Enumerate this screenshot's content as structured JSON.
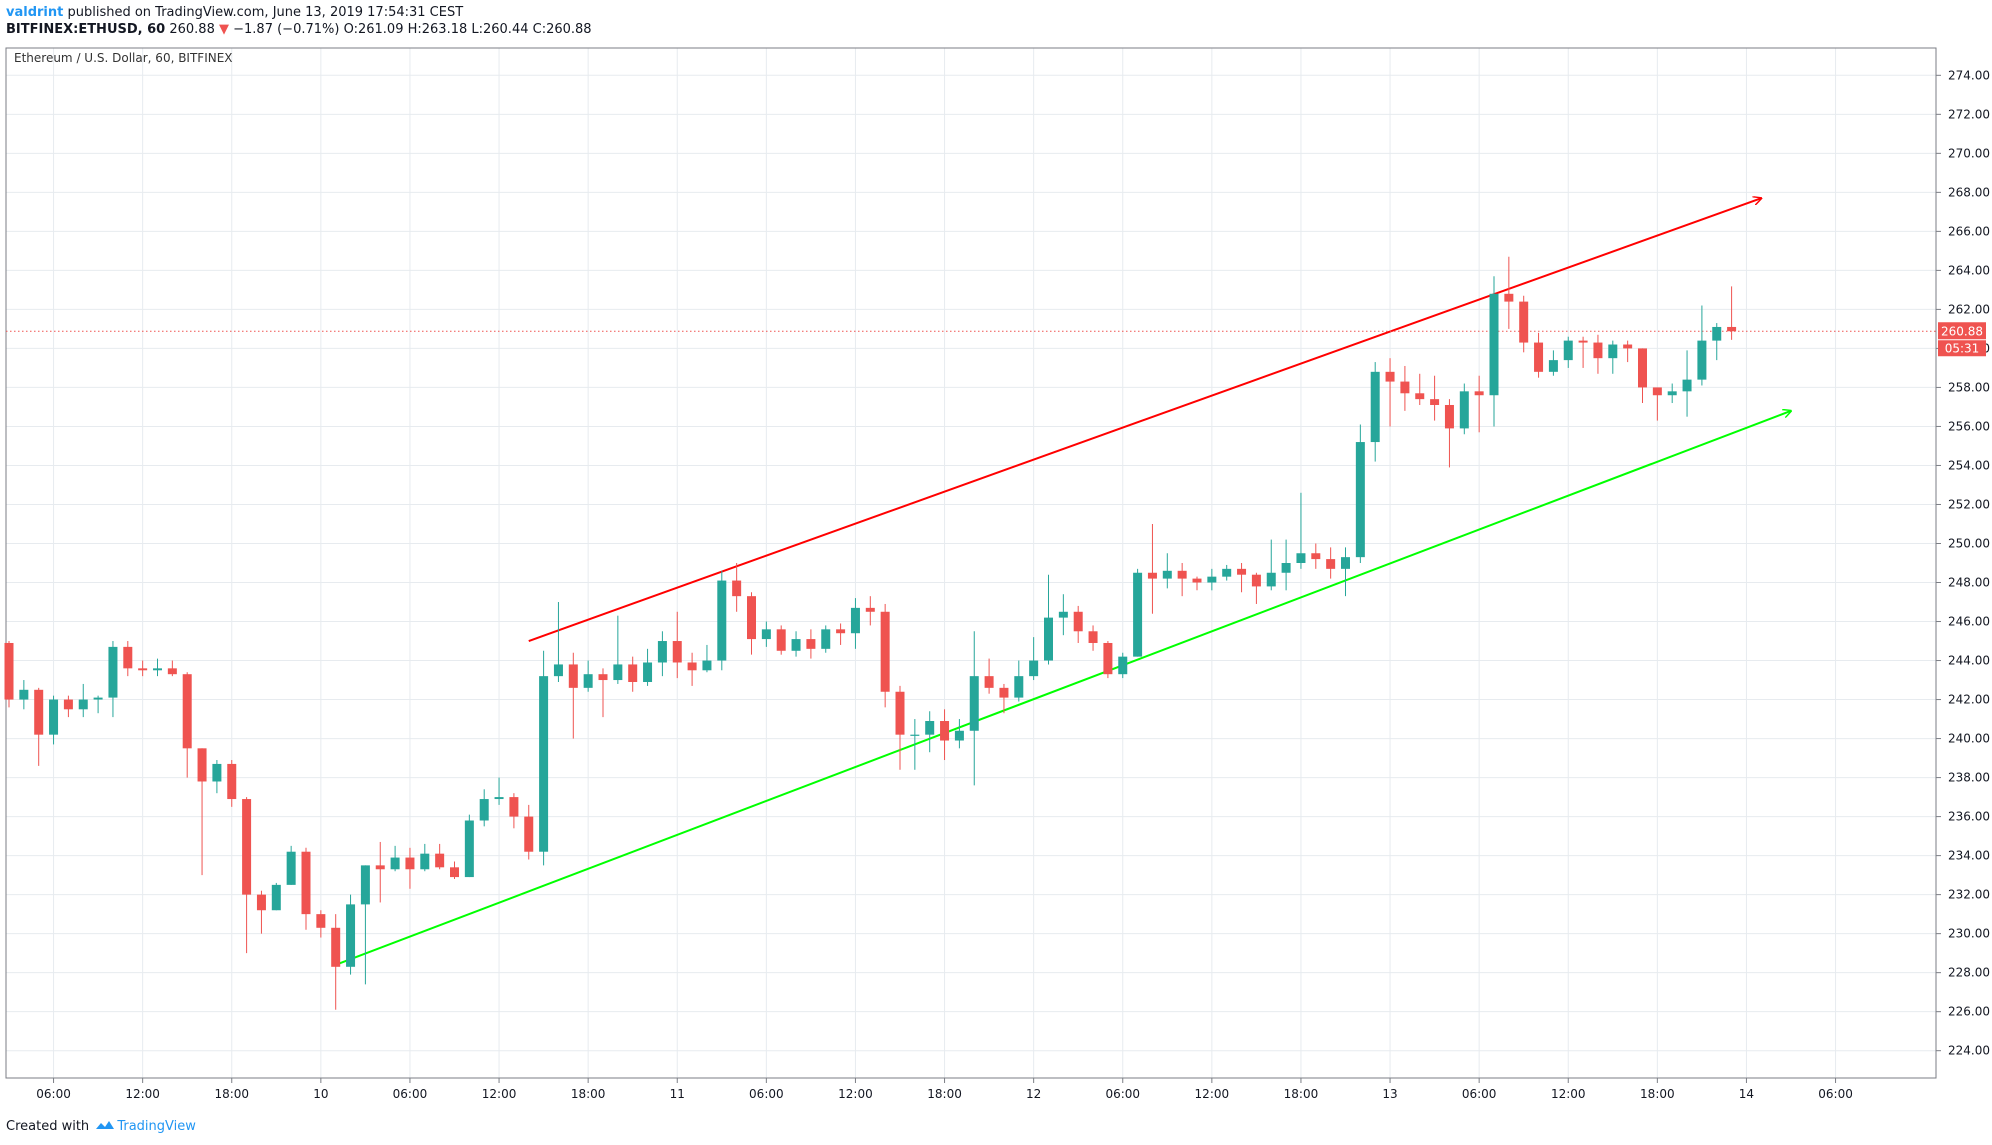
{
  "header": {
    "author": "valdrint",
    "published": " published on TradingView.com, June 13, 2019 17:54:31 CEST",
    "symbol": "BITFINEX:ETHUSD, 60",
    "last": "260.88",
    "arrow": "▼",
    "change": "−1.87 (−0.71%)",
    "ohlc": "O:261.09 H:263.18 L:260.44 C:260.88"
  },
  "footer": {
    "created": "Created with",
    "brand": "TradingView"
  },
  "colors": {
    "up": "#26a69a",
    "down": "#ef5350",
    "upper_trend": "#ff0000",
    "lower_trend": "#00ff00",
    "grid": "#e7ebef"
  },
  "chart_data": {
    "type": "candlestick",
    "title": "Ethereum / U.S. Dollar, 60, BITFINEX",
    "ylim": [
      222.6,
      275.4
    ],
    "y_ticks": [
      "274.00",
      "272.00",
      "270.00",
      "268.00",
      "266.00",
      "264.00",
      "262.00",
      "260.00",
      "258.00",
      "256.00",
      "254.00",
      "252.00",
      "250.00",
      "248.00",
      "246.00",
      "244.00",
      "242.00",
      "240.00",
      "238.00",
      "236.00",
      "234.00",
      "232.00",
      "230.00",
      "228.00",
      "226.00",
      "224.00"
    ],
    "x_ticks": [
      {
        "label": "06:00",
        "i": 3
      },
      {
        "label": "12:00",
        "i": 9
      },
      {
        "label": "18:00",
        "i": 15
      },
      {
        "label": "10",
        "i": 21
      },
      {
        "label": "06:00",
        "i": 27
      },
      {
        "label": "12:00",
        "i": 33
      },
      {
        "label": "18:00",
        "i": 39
      },
      {
        "label": "11",
        "i": 45
      },
      {
        "label": "06:00",
        "i": 51
      },
      {
        "label": "12:00",
        "i": 57
      },
      {
        "label": "18:00",
        "i": 63
      },
      {
        "label": "12",
        "i": 69
      },
      {
        "label": "06:00",
        "i": 75
      },
      {
        "label": "12:00",
        "i": 81
      },
      {
        "label": "18:00",
        "i": 87
      },
      {
        "label": "13",
        "i": 93
      },
      {
        "label": "06:00",
        "i": 99
      },
      {
        "label": "12:00",
        "i": 105
      },
      {
        "label": "18:00",
        "i": 111
      },
      {
        "label": "14",
        "i": 117
      },
      {
        "label": "06:00",
        "i": 123
      }
    ],
    "last_price_label": "260.88",
    "countdown_label": "05:31",
    "candles": [
      [
        244.9,
        242.0,
        245.0,
        241.6
      ],
      [
        242.0,
        242.5,
        243.0,
        241.5
      ],
      [
        242.5,
        240.2,
        242.6,
        238.6
      ],
      [
        240.2,
        242.0,
        242.2,
        239.7
      ],
      [
        242.0,
        241.5,
        242.2,
        241.1
      ],
      [
        241.5,
        242.0,
        242.8,
        241.1
      ],
      [
        242.0,
        242.1,
        242.2,
        241.3
      ],
      [
        242.1,
        244.7,
        245.0,
        241.1
      ],
      [
        244.7,
        243.6,
        245.0,
        243.2
      ],
      [
        243.6,
        243.5,
        244.0,
        243.2
      ],
      [
        243.5,
        243.6,
        244.1,
        243.2
      ],
      [
        243.6,
        243.3,
        244.0,
        243.2
      ],
      [
        243.3,
        239.5,
        243.4,
        238.0
      ],
      [
        239.5,
        237.8,
        239.5,
        233.0
      ],
      [
        237.8,
        238.7,
        238.9,
        237.2
      ],
      [
        238.7,
        236.9,
        238.9,
        236.5
      ],
      [
        236.9,
        232.0,
        237.0,
        229.0
      ],
      [
        232.0,
        231.2,
        232.2,
        230.0
      ],
      [
        231.2,
        232.5,
        232.6,
        231.2
      ],
      [
        232.5,
        234.2,
        234.5,
        232.5
      ],
      [
        234.2,
        231.0,
        234.4,
        230.2
      ],
      [
        231.0,
        230.3,
        231.2,
        229.8
      ],
      [
        230.3,
        228.3,
        231.0,
        226.1
      ],
      [
        228.3,
        231.5,
        232.0,
        227.9
      ],
      [
        231.5,
        233.5,
        233.5,
        227.4
      ],
      [
        233.5,
        233.3,
        234.7,
        231.6
      ],
      [
        233.3,
        233.9,
        234.5,
        233.2
      ],
      [
        233.9,
        233.3,
        234.4,
        232.3
      ],
      [
        233.3,
        234.1,
        234.6,
        233.2
      ],
      [
        234.1,
        233.4,
        234.6,
        233.3
      ],
      [
        233.4,
        232.9,
        233.7,
        232.8
      ],
      [
        232.9,
        235.8,
        236.1,
        232.9
      ],
      [
        235.8,
        236.9,
        237.4,
        235.5
      ],
      [
        236.9,
        237.0,
        238.0,
        236.6
      ],
      [
        237.0,
        236.0,
        237.2,
        235.4
      ],
      [
        236.0,
        234.2,
        236.6,
        233.8
      ],
      [
        234.2,
        243.2,
        244.5,
        233.5
      ],
      [
        243.2,
        243.8,
        247.0,
        242.9
      ],
      [
        243.8,
        242.6,
        244.4,
        240.0
      ],
      [
        242.6,
        243.3,
        244.0,
        242.4
      ],
      [
        243.3,
        243.0,
        243.6,
        241.1
      ],
      [
        243.0,
        243.8,
        246.3,
        242.8
      ],
      [
        243.8,
        242.9,
        244.2,
        242.4
      ],
      [
        242.9,
        243.9,
        244.6,
        242.7
      ],
      [
        243.9,
        245.0,
        245.5,
        243.2
      ],
      [
        245.0,
        243.9,
        246.5,
        243.1
      ],
      [
        243.9,
        243.5,
        244.4,
        242.7
      ],
      [
        243.5,
        244.0,
        244.8,
        243.4
      ],
      [
        244.0,
        248.1,
        248.6,
        243.5
      ],
      [
        248.1,
        247.3,
        249.0,
        246.5
      ],
      [
        247.3,
        245.1,
        247.5,
        244.3
      ],
      [
        245.1,
        245.6,
        246.0,
        244.7
      ],
      [
        245.6,
        244.5,
        245.8,
        244.3
      ],
      [
        244.5,
        245.1,
        245.5,
        244.2
      ],
      [
        245.1,
        244.6,
        245.6,
        244.1
      ],
      [
        244.6,
        245.6,
        245.8,
        244.4
      ],
      [
        245.6,
        245.4,
        245.9,
        244.8
      ],
      [
        245.4,
        246.7,
        247.2,
        244.6
      ],
      [
        246.7,
        246.5,
        247.3,
        245.8
      ],
      [
        246.5,
        242.4,
        246.9,
        241.6
      ],
      [
        242.4,
        240.2,
        242.7,
        238.4
      ],
      [
        240.2,
        240.2,
        241.0,
        238.4
      ],
      [
        240.2,
        240.9,
        241.4,
        239.3
      ],
      [
        240.9,
        239.9,
        241.5,
        238.9
      ],
      [
        239.9,
        240.4,
        241.0,
        239.5
      ],
      [
        240.4,
        243.2,
        245.5,
        237.6
      ],
      [
        243.2,
        242.6,
        244.1,
        242.3
      ],
      [
        242.6,
        242.1,
        242.8,
        241.3
      ],
      [
        242.1,
        243.2,
        244.0,
        241.9
      ],
      [
        243.2,
        244.0,
        245.2,
        243.0
      ],
      [
        244.0,
        246.2,
        248.4,
        243.8
      ],
      [
        246.2,
        246.5,
        247.4,
        245.3
      ],
      [
        246.5,
        245.5,
        246.8,
        244.9
      ],
      [
        245.5,
        244.9,
        245.8,
        244.5
      ],
      [
        244.9,
        243.3,
        245.0,
        243.1
      ],
      [
        243.3,
        244.2,
        244.4,
        243.1
      ],
      [
        244.2,
        248.5,
        248.7,
        244.2
      ],
      [
        248.5,
        248.2,
        251.0,
        246.4
      ],
      [
        248.2,
        248.6,
        249.5,
        247.7
      ],
      [
        248.6,
        248.2,
        249.0,
        247.3
      ],
      [
        248.2,
        248.0,
        248.3,
        247.6
      ],
      [
        248.0,
        248.3,
        248.7,
        247.6
      ],
      [
        248.3,
        248.7,
        248.9,
        248.1
      ],
      [
        248.7,
        248.4,
        249.0,
        247.5
      ],
      [
        248.4,
        247.8,
        248.5,
        246.9
      ],
      [
        247.8,
        248.5,
        250.2,
        247.6
      ],
      [
        248.5,
        249.0,
        250.2,
        247.6
      ],
      [
        249.0,
        249.5,
        252.6,
        248.7
      ],
      [
        249.5,
        249.2,
        250.0,
        248.7
      ],
      [
        249.2,
        248.7,
        249.8,
        248.2
      ],
      [
        248.7,
        249.3,
        249.8,
        247.3
      ],
      [
        249.3,
        255.2,
        256.1,
        249.0
      ],
      [
        255.2,
        258.8,
        259.3,
        254.2
      ],
      [
        258.8,
        258.3,
        259.5,
        256.0
      ],
      [
        258.3,
        257.7,
        259.1,
        256.8
      ],
      [
        257.7,
        257.4,
        258.7,
        257.1
      ],
      [
        257.4,
        257.1,
        258.6,
        256.3
      ],
      [
        257.1,
        255.9,
        257.4,
        253.9
      ],
      [
        255.9,
        257.8,
        258.2,
        255.6
      ],
      [
        257.8,
        257.6,
        258.6,
        255.7
      ],
      [
        257.6,
        262.8,
        263.7,
        256.0
      ],
      [
        262.8,
        262.4,
        264.7,
        261.0
      ],
      [
        262.4,
        260.3,
        262.7,
        259.8
      ],
      [
        260.3,
        258.8,
        260.8,
        258.5
      ],
      [
        258.8,
        259.4,
        259.9,
        258.6
      ],
      [
        259.4,
        260.4,
        260.6,
        259.0
      ],
      [
        260.4,
        260.3,
        260.6,
        259.0
      ],
      [
        260.3,
        259.5,
        260.7,
        258.7
      ],
      [
        259.5,
        260.2,
        260.4,
        258.7
      ],
      [
        260.2,
        260.0,
        260.4,
        259.3
      ],
      [
        260.0,
        258.0,
        260.0,
        257.2
      ],
      [
        258.0,
        257.6,
        258.0,
        256.3
      ],
      [
        257.6,
        257.8,
        258.2,
        257.2
      ],
      [
        257.8,
        258.4,
        259.9,
        256.5
      ],
      [
        258.4,
        260.4,
        262.2,
        258.1
      ],
      [
        260.4,
        261.1,
        261.3,
        259.4
      ],
      [
        261.1,
        260.88,
        263.18,
        260.44
      ]
    ],
    "trendlines": [
      {
        "color": "upper",
        "from": {
          "i": 35,
          "p": 245.0
        },
        "to": {
          "i": 102,
          "p": 263.2
        },
        "arrow_to": {
          "i": 118,
          "p": 267.7
        }
      },
      {
        "color": "lower",
        "from": {
          "i": 22,
          "p": 228.4
        },
        "to": {
          "i": 61,
          "p": 240.0
        },
        "arrow_to": {
          "i": 120,
          "p": 256.8
        }
      }
    ]
  }
}
